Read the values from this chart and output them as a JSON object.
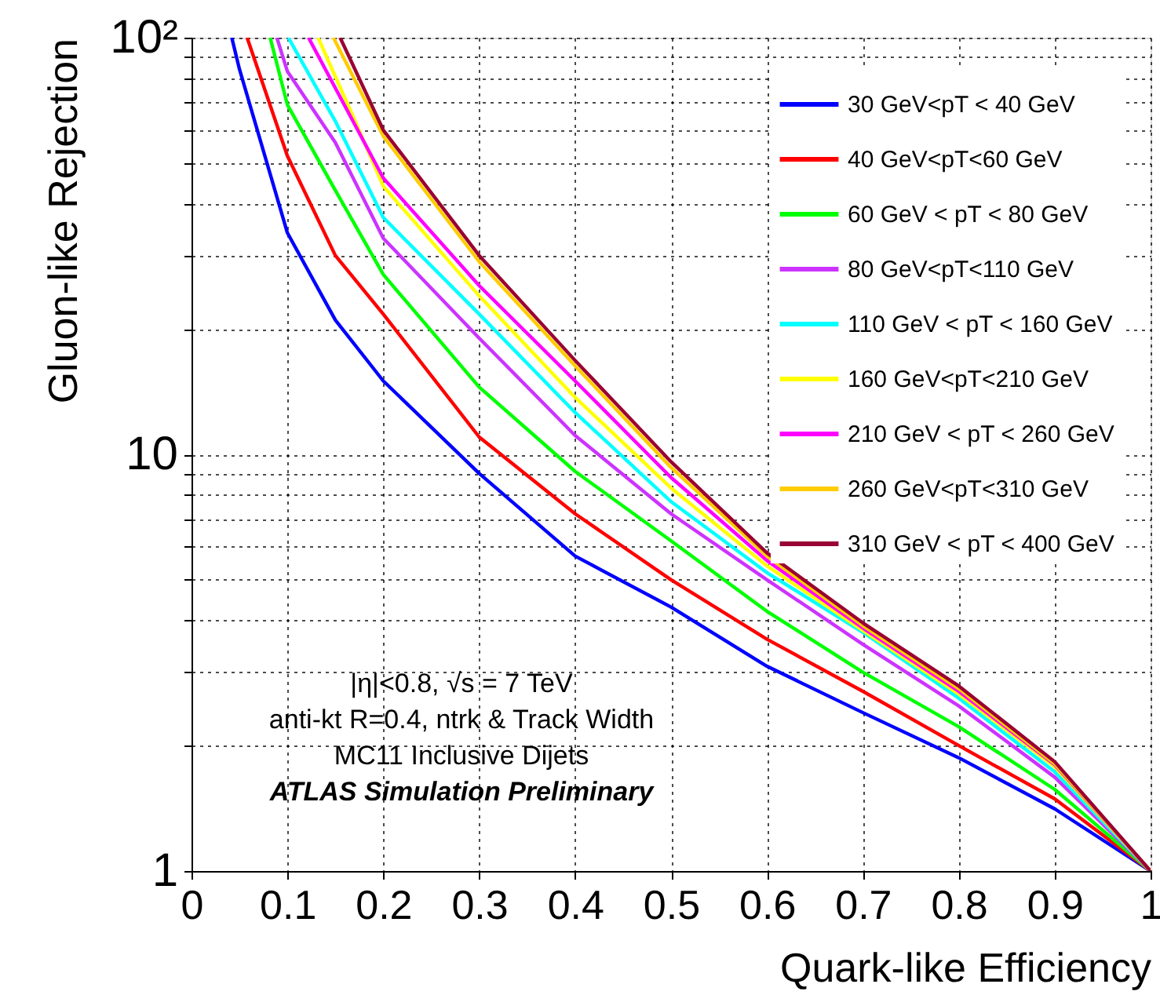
{
  "chart_data": {
    "type": "line",
    "xlabel": "Quark-like Efficiency",
    "ylabel": "Gluon-like Rejection",
    "log": "y",
    "grid": true,
    "legend": "top right",
    "line_style": "solid",
    "xlim": [
      0,
      1
    ],
    "xticks": [
      0,
      0.1,
      0.2,
      0.3,
      0.4,
      0.5,
      0.6,
      0.7,
      0.8,
      0.9,
      1
    ],
    "ylim": [
      1,
      100
    ],
    "yticks": [
      1,
      {
        "value": 2,
        "label": null
      },
      {
        "value": 3,
        "label": null
      },
      {
        "value": 4,
        "label": null
      },
      {
        "value": 5,
        "label": null
      },
      {
        "value": 6,
        "label": null
      },
      {
        "value": 7,
        "label": null
      },
      {
        "value": 8,
        "label": null
      },
      {
        "value": 9,
        "label": null
      },
      10,
      {
        "value": 20,
        "label": null
      },
      {
        "value": 30,
        "label": null
      },
      {
        "value": 40,
        "label": null
      },
      {
        "value": 50,
        "label": null
      },
      {
        "value": 60,
        "label": null
      },
      {
        "value": 70,
        "label": null
      },
      {
        "value": 80,
        "label": null
      },
      {
        "value": 90,
        "label": null
      },
      {
        "value": 100,
        "label": "10²"
      }
    ],
    "annotations": [
      "|η|<0.8, √s = 7 TeV",
      "anti-kt R=0.4, ntrk & Track Width",
      "MC11 Inclusive Dijets",
      "ATLAS Simulation Preliminary"
    ],
    "series": [
      {
        "name": "30 GeV<pT < 40 GeV",
        "color": "#0000ff",
        "x": [
          0.042,
          0.05,
          0.1,
          0.15,
          0.2,
          0.3,
          0.4,
          0.5,
          0.6,
          0.7,
          0.8,
          0.9,
          1
        ],
        "values": [
          100,
          84,
          34,
          21,
          15,
          9.0,
          5.7,
          4.3,
          3.1,
          2.4,
          1.87,
          1.41,
          1
        ]
      },
      {
        "name": "40 GeV<pT<60 GeV",
        "color": "#ff0000",
        "x": [
          0.058,
          0.1,
          0.15,
          0.2,
          0.3,
          0.4,
          0.5,
          0.6,
          0.7,
          0.8,
          0.9,
          1
        ],
        "values": [
          100,
          52,
          30,
          21.7,
          11,
          7.2,
          5.0,
          3.6,
          2.7,
          2.0,
          1.49,
          1
        ]
      },
      {
        "name": "60 GeV < pT < 80 GeV",
        "color": "#00ff00",
        "x": [
          0.082,
          0.1,
          0.15,
          0.2,
          0.3,
          0.4,
          0.5,
          0.6,
          0.7,
          0.8,
          0.9,
          1
        ],
        "values": [
          100,
          69,
          43,
          27,
          14.5,
          9.1,
          6.2,
          4.2,
          3.0,
          2.22,
          1.57,
          1
        ]
      },
      {
        "name": "80 GeV<pT<110 GeV",
        "color": "#cc33ff",
        "x": [
          0.089,
          0.1,
          0.15,
          0.2,
          0.3,
          0.4,
          0.5,
          0.6,
          0.7,
          0.8,
          0.9,
          1
        ],
        "values": [
          100,
          83,
          56,
          33,
          19,
          11.1,
          7.2,
          5.0,
          3.5,
          2.49,
          1.68,
          1
        ]
      },
      {
        "name": "110 GeV < pT < 160 GeV",
        "color": "#00ffff",
        "x": [
          0.101,
          0.15,
          0.2,
          0.3,
          0.4,
          0.5,
          0.6,
          0.7,
          0.8,
          0.9,
          1
        ],
        "values": [
          100,
          63,
          37,
          21.7,
          12.6,
          7.7,
          5.2,
          3.74,
          2.6,
          1.73,
          1
        ]
      },
      {
        "name": "160 GeV<pT<210 GeV",
        "color": "#ffff00",
        "x": [
          0.132,
          0.172,
          0.2,
          0.3,
          0.4,
          0.5,
          0.6,
          0.7,
          0.8,
          0.9,
          1
        ],
        "values": [
          100,
          62,
          44,
          24,
          13.7,
          8.3,
          5.4,
          3.78,
          2.66,
          1.78,
          1
        ]
      },
      {
        "name": "210 GeV < pT < 260 GeV",
        "color": "#ff00ff",
        "x": [
          0.122,
          0.2,
          0.3,
          0.4,
          0.5,
          0.6,
          0.7,
          0.8,
          0.9,
          1
        ],
        "values": [
          100,
          46,
          25.4,
          15,
          8.8,
          5.56,
          3.83,
          2.7,
          1.8,
          1
        ]
      },
      {
        "name": "260 GeV<pT<310 GeV",
        "color": "#ffcc00",
        "x": [
          0.148,
          0.2,
          0.3,
          0.4,
          0.5,
          0.6,
          0.7,
          0.8,
          0.9,
          1
        ],
        "values": [
          100,
          58,
          29,
          16.3,
          9.3,
          5.7,
          3.88,
          2.74,
          1.81,
          1
        ]
      },
      {
        "name": "310 GeV < pT < 400 GeV",
        "color": "#990033",
        "x": [
          0.155,
          0.2,
          0.3,
          0.4,
          0.5,
          0.6,
          0.7,
          0.8,
          0.9,
          1
        ],
        "values": [
          100,
          60,
          30,
          16.8,
          9.6,
          5.8,
          3.94,
          2.78,
          1.83,
          1
        ]
      }
    ]
  }
}
